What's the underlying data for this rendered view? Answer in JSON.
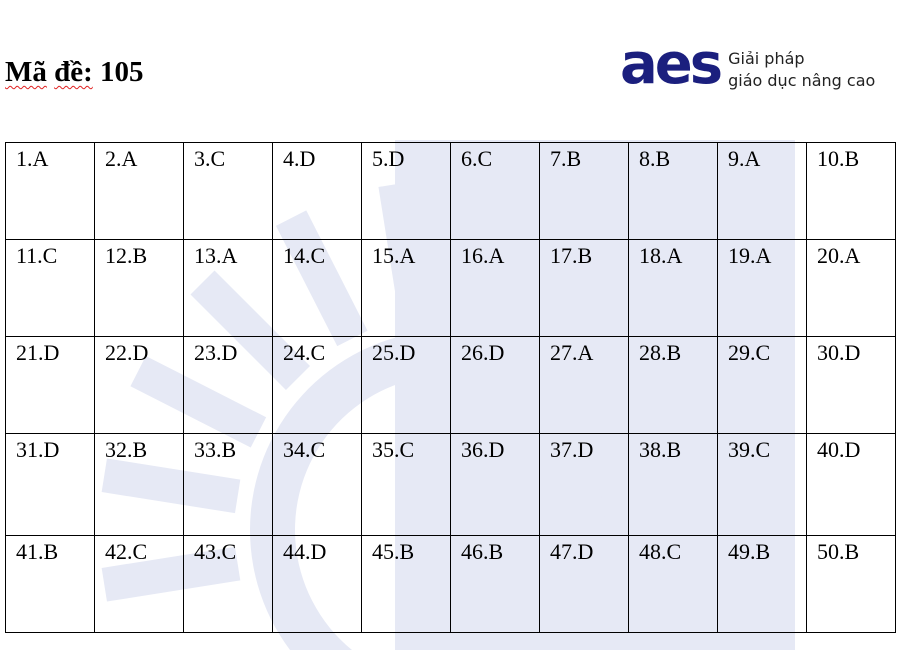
{
  "header": {
    "title_prefix": "Mã đề:",
    "code": "105",
    "title_word1": "Mã",
    "title_word2": "đề:"
  },
  "logo": {
    "mark": "aes",
    "line1": "Giải pháp",
    "line2": "giáo dục nâng cao",
    "color": "#1b1f7e"
  },
  "answers": [
    [
      "1.A",
      "2.A",
      "3.C",
      "4.D",
      "5.D",
      "6.C",
      "7.B",
      "8.B",
      "9.A",
      "10.B"
    ],
    [
      "11.C",
      "12.B",
      "13.A",
      "14.C",
      "15.A",
      "16.A",
      "17.B",
      "18.A",
      "19.A",
      "20.A"
    ],
    [
      "21.D",
      "22.D",
      "23.D",
      "24.C",
      "25.D",
      "26.D",
      "27.A",
      "28.B",
      "29.C",
      "30.D"
    ],
    [
      "31.D",
      "32.B",
      "33.B",
      "34.C",
      "35.C",
      "36.D",
      "37.D",
      "38.B",
      "39.C",
      "40.D"
    ],
    [
      "41.B",
      "42.C",
      "43.C",
      "44.D",
      "45.B",
      "46.B",
      "47.D",
      "48.C",
      "49.B",
      "50.B"
    ]
  ],
  "watermark_color": "#e6e9f5"
}
